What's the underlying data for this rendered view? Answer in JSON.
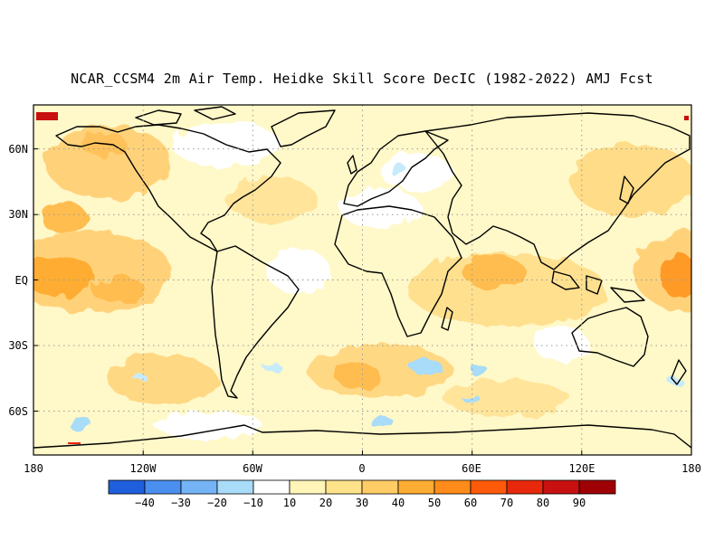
{
  "title": "NCAR_CCSM4 2m Air Temp. Heidke Skill Score DecIC (1982-2022) AMJ Fcst",
  "map": {
    "lon_labels": [
      "180",
      "120W",
      "60W",
      "0",
      "60E",
      "120E",
      "180"
    ],
    "lat_labels": [
      "60N",
      "30N",
      "EQ",
      "30S",
      "60S"
    ],
    "projection": "equirectangular, global",
    "lat_extent": [
      -80,
      80
    ]
  },
  "colorbar": {
    "labels": [
      "-40",
      "-30",
      "-20",
      "-10",
      "10",
      "20",
      "30",
      "40",
      "50",
      "60",
      "70",
      "80",
      "90"
    ],
    "colors": [
      "#1f5fdc",
      "#4a8ff0",
      "#74b4f6",
      "#a8dcf8",
      "#ffffff",
      "#fff5b8",
      "#ffe38a",
      "#ffcc66",
      "#ffad33",
      "#ff8c1a",
      "#ff5a0a",
      "#e8280a",
      "#c81010",
      "#9e0005"
    ]
  }
}
